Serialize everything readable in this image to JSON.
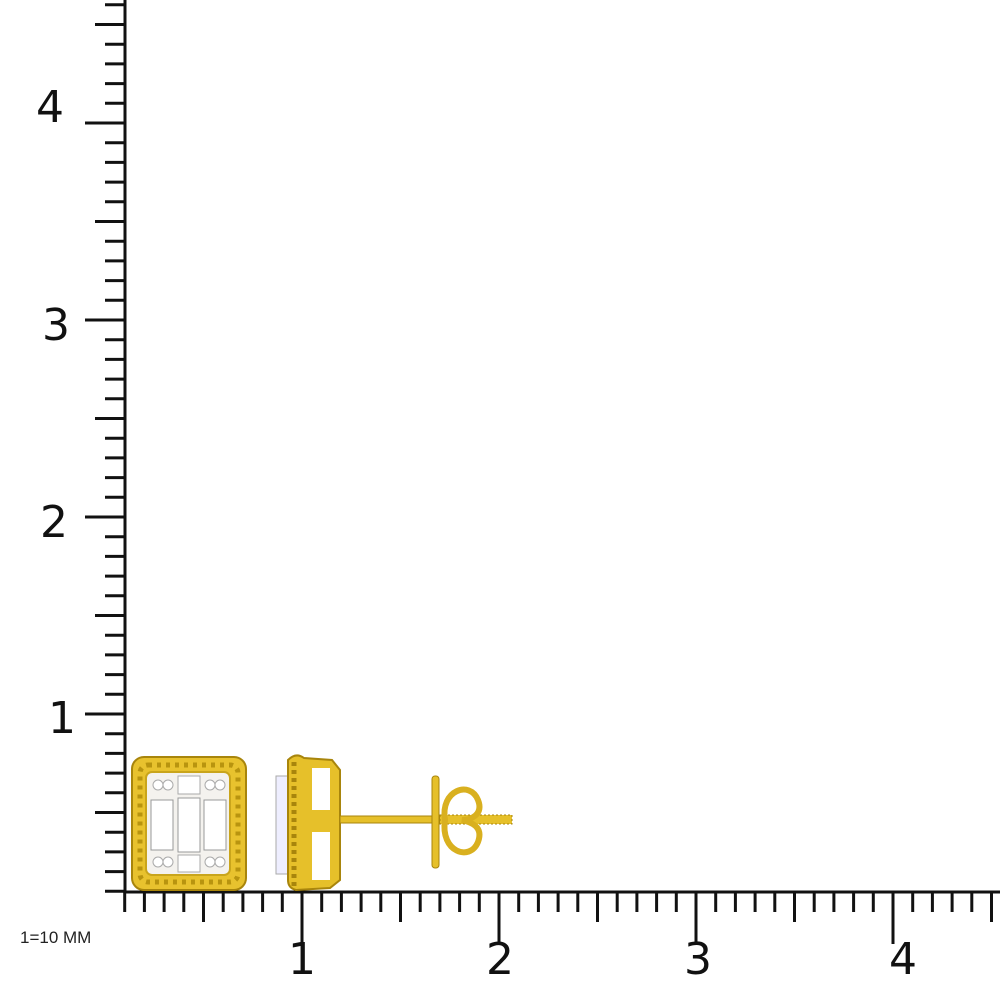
{
  "scale_label": "1=10 MM",
  "y_axis": {
    "labels": [
      "1",
      "2",
      "3",
      "4"
    ]
  },
  "x_axis": {
    "labels": [
      "1",
      "2",
      "3",
      "4"
    ]
  },
  "colors": {
    "gold": "#e6c02a",
    "gold_dark": "#a8850c",
    "stone": "#f2f2f0",
    "ruler": "#111111"
  },
  "product": {
    "views": [
      "front-view",
      "side-view"
    ]
  }
}
